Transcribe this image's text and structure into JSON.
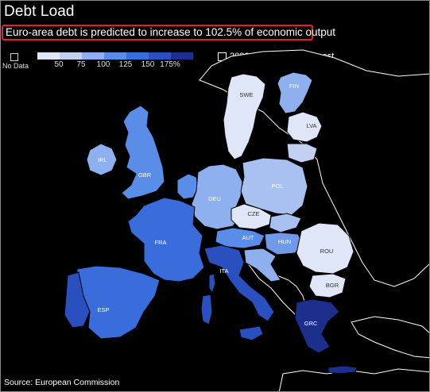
{
  "header": {
    "title": "Debt Load",
    "subtitle": "Euro-area debt is predicted to increase to 102.5% of economic output"
  },
  "legend": {
    "no_data_label": "No Data",
    "scale_ticks": [
      "50",
      "75",
      "100",
      "125",
      "150",
      "175%"
    ],
    "scale_colors": [
      "#dfe6f7",
      "#c2d1f2",
      "#8fb0ee",
      "#5a8de8",
      "#3a6ddc",
      "#2a4fbf",
      "#1c2f8c"
    ],
    "forecast_label": "2020 debt-to-GDP forecast"
  },
  "countries": [
    {
      "code": "SWE",
      "label": "SWE",
      "color": "#dfe6f7"
    },
    {
      "code": "FIN",
      "label": "FIN",
      "color": "#8fb0ee"
    },
    {
      "code": "LVA",
      "label": "LVA",
      "color": "#dfe6f7"
    },
    {
      "code": "IRL",
      "label": "IRL",
      "color": "#8fb0ee"
    },
    {
      "code": "GBR",
      "label": "GBR",
      "color": "#5a8de8"
    },
    {
      "code": "DEU",
      "label": "DEU",
      "color": "#8fb0ee"
    },
    {
      "code": "POL",
      "label": "POL",
      "color": "#a9c1f1"
    },
    {
      "code": "CZE",
      "label": "CZE",
      "color": "#dfe6f7"
    },
    {
      "code": "AUT",
      "label": "AUT",
      "color": "#5a8de8"
    },
    {
      "code": "HUN",
      "label": "HUN",
      "color": "#6f9aea"
    },
    {
      "code": "ROU",
      "label": "ROU",
      "color": "#dfe6f7"
    },
    {
      "code": "BGR",
      "label": "BGR",
      "color": "#dfe6f7"
    },
    {
      "code": "FRA",
      "label": "FRA",
      "color": "#3a6ddc"
    },
    {
      "code": "ESP",
      "label": "ESP",
      "color": "#3a6ddc"
    },
    {
      "code": "ITA",
      "label": "ITA",
      "color": "#2a4fbf"
    },
    {
      "code": "GRC",
      "label": "GRC",
      "color": "#1c2f8c"
    }
  ],
  "map_colors": {
    "other_land": "#000000",
    "benelux": "#5a8de8",
    "portugal": "#2a4fbf",
    "baltic": "#c2d1f2",
    "slovakia": "#a9c1f1",
    "slovenia_croatia": "#8fb0ee"
  },
  "footer": {
    "source": "Source: European Commission"
  }
}
